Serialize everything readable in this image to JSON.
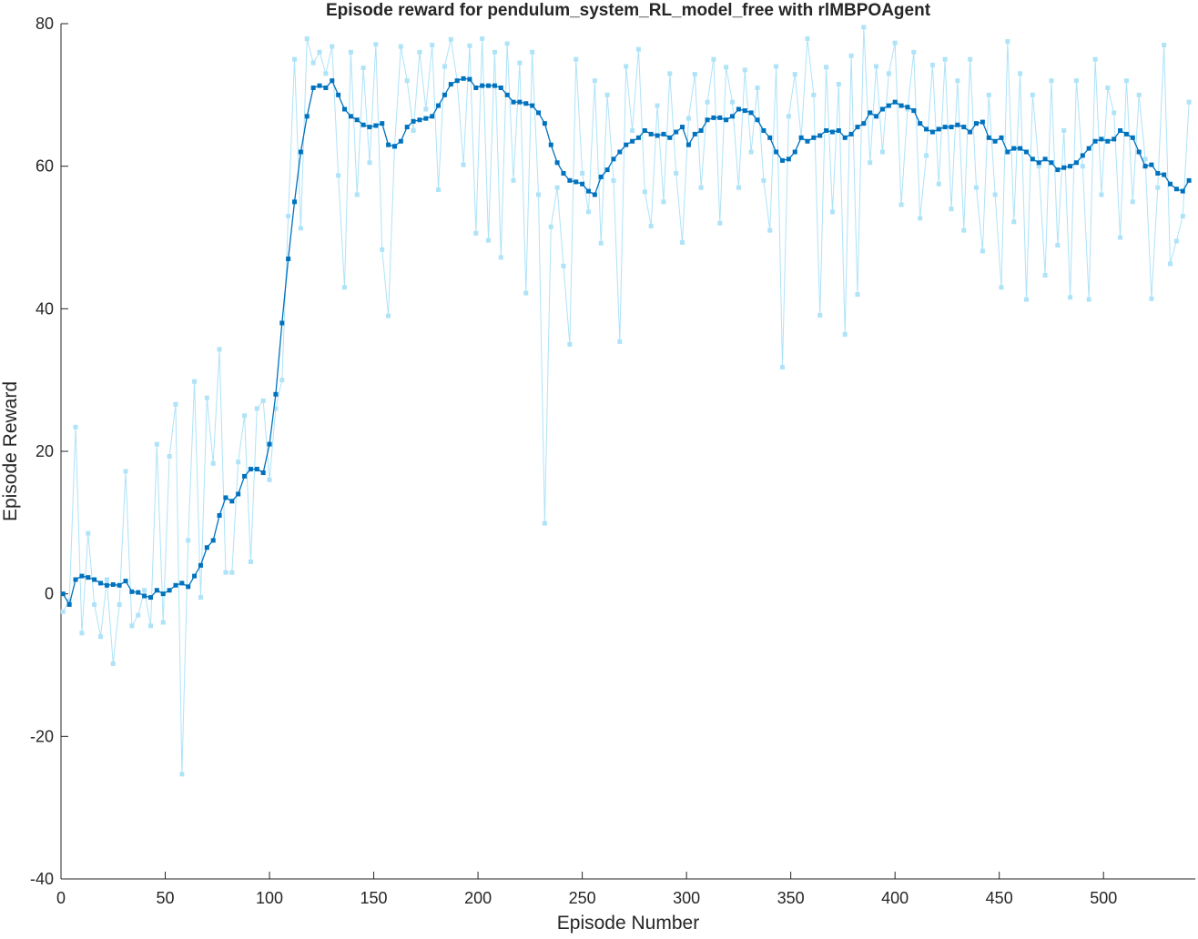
{
  "chart_data": {
    "type": "line",
    "title": "Episode reward for pendulum_system_RL_model_free with rlMBPOAgent",
    "x_label": "Episode Number",
    "y_label": "Episode Reward",
    "xlim": [
      0,
      544
    ],
    "ylim": [
      -40,
      80
    ],
    "xticks": [
      0,
      50,
      100,
      150,
      200,
      250,
      300,
      350,
      400,
      450,
      500
    ],
    "yticks": [
      -40,
      -20,
      0,
      20,
      40,
      60,
      80
    ],
    "x": [
      1,
      4,
      7,
      10,
      13,
      16,
      19,
      22,
      25,
      28,
      31,
      34,
      37,
      40,
      43,
      46,
      49,
      52,
      55,
      58,
      61,
      64,
      67,
      70,
      73,
      76,
      79,
      82,
      85,
      88,
      91,
      94,
      97,
      100,
      103,
      106,
      109,
      112,
      115,
      118,
      121,
      124,
      127,
      130,
      133,
      136,
      139,
      142,
      145,
      148,
      151,
      154,
      157,
      160,
      163,
      166,
      169,
      172,
      175,
      178,
      181,
      184,
      187,
      190,
      193,
      196,
      199,
      202,
      205,
      208,
      211,
      214,
      217,
      220,
      223,
      226,
      229,
      232,
      235,
      238,
      241,
      244,
      247,
      250,
      253,
      256,
      259,
      262,
      265,
      268,
      271,
      274,
      277,
      280,
      283,
      286,
      289,
      292,
      295,
      298,
      301,
      304,
      307,
      310,
      313,
      316,
      319,
      322,
      325,
      328,
      331,
      334,
      337,
      340,
      343,
      346,
      349,
      352,
      355,
      358,
      361,
      364,
      367,
      370,
      373,
      376,
      379,
      382,
      385,
      388,
      391,
      394,
      397,
      400,
      403,
      406,
      409,
      412,
      415,
      418,
      421,
      424,
      427,
      430,
      433,
      436,
      439,
      442,
      445,
      448,
      451,
      454,
      457,
      460,
      463,
      466,
      469,
      472,
      475,
      478,
      481,
      484,
      487,
      490,
      493,
      496,
      499,
      502,
      505,
      508,
      511,
      514,
      517,
      520,
      523,
      526,
      529,
      532,
      535,
      538,
      541
    ],
    "series": [
      {
        "color": "#aee3f8",
        "values": [
          -2.5,
          -1,
          23.4,
          -5.5,
          8.5,
          -1.5,
          -6,
          2,
          -9.8,
          -1.5,
          17.2,
          -4.5,
          -3,
          0.5,
          -4.5,
          21,
          -4,
          19.3,
          26.6,
          -25.3,
          7.5,
          29.8,
          -0.5,
          27.5,
          18.3,
          34.3,
          3,
          3,
          18.5,
          25,
          4.5,
          26,
          27.1,
          16,
          26,
          30,
          53,
          75,
          51.3,
          77.9,
          74.5,
          76,
          73,
          76.8,
          58.7,
          43,
          76,
          56,
          73.8,
          60.5,
          77.1,
          48.3,
          39,
          62.7,
          76.8,
          72,
          65,
          76,
          68,
          77,
          56.7,
          74,
          77.8,
          72,
          60.2,
          76.9,
          50.6,
          77.9,
          49.6,
          76,
          47.2,
          77.2,
          58,
          74.5,
          42.2,
          76,
          56,
          9.9,
          51.5,
          57,
          46,
          35,
          75,
          59,
          53.6,
          72,
          49.2,
          70,
          58,
          35.4,
          74,
          65,
          76.4,
          56.4,
          51.6,
          68.5,
          55,
          73,
          59,
          49.3,
          66.7,
          72.9,
          57,
          69,
          75,
          52,
          73.9,
          69,
          57,
          73.5,
          62,
          71,
          58,
          51,
          74,
          31.8,
          67,
          72.9,
          64,
          77.9,
          70,
          39.1,
          73.9,
          53.6,
          71.5,
          36.4,
          75.5,
          42,
          79.5,
          60.5,
          74,
          62,
          73,
          77.3,
          54.6,
          68,
          76,
          52.7,
          61.5,
          74.2,
          57.5,
          75,
          54,
          72,
          51,
          75,
          57,
          48.1,
          70,
          56,
          43,
          77.5,
          52.2,
          73,
          41.3,
          70,
          60,
          44.7,
          72,
          48.9,
          65,
          41.6,
          72,
          60,
          41.3,
          75,
          56,
          71,
          67.5,
          50,
          72,
          55,
          70,
          61,
          41.4,
          57,
          77,
          46.3,
          49.5,
          53,
          69
        ]
      },
      {
        "color": "#0072bd",
        "values": [
          0,
          -1.5,
          2,
          2.5,
          2.3,
          2,
          1.5,
          1.2,
          1.3,
          1.2,
          1.8,
          0.3,
          0.2,
          -0.3,
          -0.5,
          0.5,
          0,
          0.5,
          1.2,
          1.5,
          1,
          2.5,
          4,
          6.5,
          7.5,
          11,
          13.5,
          13,
          14,
          16.5,
          17.5,
          17.5,
          17,
          21,
          28,
          38,
          47,
          55,
          62,
          67,
          71,
          71.3,
          71,
          72,
          70,
          68,
          67,
          66.5,
          65.8,
          65.5,
          65.7,
          66,
          63,
          62.8,
          63.5,
          65.5,
          66.3,
          66.5,
          66.7,
          67,
          68.5,
          70,
          71.5,
          72,
          72.3,
          72.2,
          71,
          71.3,
          71.3,
          71.3,
          71,
          70,
          69,
          69,
          68.8,
          68.5,
          67.5,
          66,
          63,
          60.5,
          59,
          58,
          57.8,
          57.5,
          56.5,
          56,
          58.5,
          59.5,
          61,
          62,
          63,
          63.5,
          64,
          65,
          64.5,
          64.3,
          64.5,
          64,
          64.8,
          65.5,
          63,
          64.5,
          65,
          66.5,
          66.8,
          66.8,
          66.5,
          67,
          68,
          67.8,
          67.5,
          66.5,
          65,
          64,
          62,
          60.8,
          61,
          62,
          64,
          63.5,
          64,
          64.3,
          65,
          64.8,
          65,
          64,
          64.5,
          65.5,
          66,
          67.5,
          67,
          68,
          68.5,
          69,
          68.5,
          68.3,
          67.8,
          66,
          65.2,
          64.8,
          65.2,
          65.5,
          65.5,
          65.8,
          65.5,
          64.8,
          66,
          66.2,
          64,
          63.5,
          64,
          62,
          62.5,
          62.5,
          62,
          61,
          60.5,
          61,
          60.5,
          59.5,
          59.8,
          60,
          60.5,
          61.5,
          62.5,
          63.5,
          63.8,
          63.5,
          63.8,
          65,
          64.5,
          64,
          62,
          60,
          60.2,
          59,
          58.8,
          57.5,
          56.8,
          56.5,
          58
        ]
      }
    ]
  }
}
